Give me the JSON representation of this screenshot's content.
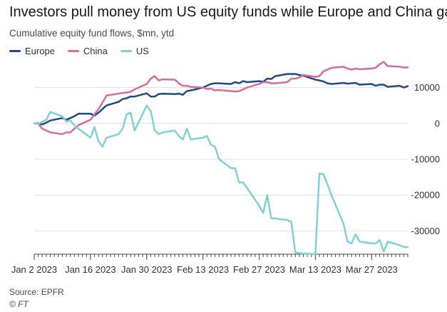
{
  "title": "Investors pull money from US equity funds while Europe and China gain",
  "subtitle": "Cumulative equity fund flows, $mn, ytd",
  "source": "Source: EPFR",
  "credit": "© FT",
  "colors": {
    "europe": "#1e4b87",
    "china": "#d96b9a",
    "us": "#7fd1d6",
    "grid": "#e3dfda",
    "axis": "#4d4845"
  },
  "chart_data": {
    "type": "line",
    "title": "Investors pull money from US equity funds while Europe and China gain",
    "subtitle": "Cumulative equity fund flows, $mn, ytd",
    "xlabel": "",
    "ylabel": "",
    "x_tick_labels": [
      "Jan 2 2023",
      "Jan 16 2023",
      "Jan 30 2023",
      "Feb 13 2023",
      "Feb 27 2023",
      "Mar 13 2023",
      "Mar 27 2023"
    ],
    "x_range": [
      "2023-01-02",
      "2023-04-05"
    ],
    "y_ticks": [
      10000,
      0,
      -10000,
      -20000,
      -30000
    ],
    "y_tick_labels": [
      "10000",
      "0",
      "-10000",
      "-20000",
      "-30000"
    ],
    "ylim": [
      -36500,
      16500
    ],
    "grid": true,
    "legend_position": "top-left",
    "series": [
      {
        "name": "Europe",
        "color": "#1e4b87",
        "dates": [
          "2023-01-02",
          "2023-01-03",
          "2023-01-04",
          "2023-01-05",
          "2023-01-06",
          "2023-01-09",
          "2023-01-10",
          "2023-01-11",
          "2023-01-12",
          "2023-01-13",
          "2023-01-16",
          "2023-01-17",
          "2023-01-18",
          "2023-01-19",
          "2023-01-20",
          "2023-01-23",
          "2023-01-24",
          "2023-01-25",
          "2023-01-26",
          "2023-01-27",
          "2023-01-30",
          "2023-01-31",
          "2023-02-01",
          "2023-02-02",
          "2023-02-03",
          "2023-02-06",
          "2023-02-07",
          "2023-02-08",
          "2023-02-09",
          "2023-02-10",
          "2023-02-13",
          "2023-02-14",
          "2023-02-15",
          "2023-02-16",
          "2023-02-17",
          "2023-02-20",
          "2023-02-21",
          "2023-02-22",
          "2023-02-23",
          "2023-02-24",
          "2023-02-27",
          "2023-02-28",
          "2023-03-01",
          "2023-03-02",
          "2023-03-03",
          "2023-03-06",
          "2023-03-07",
          "2023-03-08",
          "2023-03-09",
          "2023-03-10",
          "2023-03-13",
          "2023-03-14",
          "2023-03-15",
          "2023-03-16",
          "2023-03-17",
          "2023-03-20",
          "2023-03-21",
          "2023-03-22",
          "2023-03-23",
          "2023-03-24",
          "2023-03-27",
          "2023-03-28",
          "2023-03-29",
          "2023-03-30",
          "2023-03-31",
          "2023-04-03",
          "2023-04-04",
          "2023-04-05"
        ],
        "values": [
          0,
          0,
          -300,
          200,
          800,
          1500,
          1000,
          1500,
          2000,
          2700,
          2700,
          2200,
          3000,
          4000,
          5000,
          6000,
          6800,
          7000,
          7500,
          7500,
          8400,
          7500,
          7500,
          8200,
          8300,
          8200,
          8300,
          8000,
          9000,
          9200,
          10000,
          10500,
          11000,
          11200,
          11200,
          11000,
          11500,
          11200,
          11800,
          11500,
          11800,
          11600,
          12500,
          12400,
          13200,
          13800,
          13800,
          13800,
          13500,
          13300,
          12200,
          12000,
          11700,
          11200,
          11000,
          11300,
          11100,
          11200,
          11300,
          10800,
          11000,
          10500,
          10800,
          10800,
          10200,
          10500,
          10000,
          10400
        ]
      },
      {
        "name": "China",
        "color": "#d96b9a",
        "dates": [
          "2023-01-02",
          "2023-01-03",
          "2023-01-04",
          "2023-01-05",
          "2023-01-06",
          "2023-01-09",
          "2023-01-10",
          "2023-01-11",
          "2023-01-12",
          "2023-01-13",
          "2023-01-16",
          "2023-01-17",
          "2023-01-18",
          "2023-01-19",
          "2023-01-20",
          "2023-01-23",
          "2023-01-24",
          "2023-01-25",
          "2023-01-26",
          "2023-01-27",
          "2023-01-30",
          "2023-01-31",
          "2023-02-01",
          "2023-02-02",
          "2023-02-03",
          "2023-02-06",
          "2023-02-07",
          "2023-02-08",
          "2023-02-09",
          "2023-02-10",
          "2023-02-13",
          "2023-02-14",
          "2023-02-15",
          "2023-02-16",
          "2023-02-17",
          "2023-02-20",
          "2023-02-21",
          "2023-02-22",
          "2023-02-23",
          "2023-02-24",
          "2023-02-27",
          "2023-02-28",
          "2023-03-01",
          "2023-03-02",
          "2023-03-03",
          "2023-03-06",
          "2023-03-07",
          "2023-03-08",
          "2023-03-09",
          "2023-03-10",
          "2023-03-13",
          "2023-03-14",
          "2023-03-15",
          "2023-03-16",
          "2023-03-17",
          "2023-03-20",
          "2023-03-21",
          "2023-03-22",
          "2023-03-23",
          "2023-03-24",
          "2023-03-27",
          "2023-03-28",
          "2023-03-29",
          "2023-03-30",
          "2023-03-31",
          "2023-04-03",
          "2023-04-04",
          "2023-04-05"
        ],
        "values": [
          0,
          -100,
          -1500,
          -2000,
          -2500,
          -3000,
          -2500,
          -2500,
          -1500,
          -500,
          1000,
          2500,
          4000,
          5800,
          7800,
          8300,
          8500,
          8600,
          8800,
          9500,
          11000,
          12500,
          13200,
          12000,
          12300,
          12200,
          11200,
          10500,
          10500,
          10200,
          10000,
          9600,
          9700,
          9200,
          9300,
          9000,
          8900,
          9000,
          9500,
          10000,
          11000,
          11500,
          11500,
          11200,
          11200,
          11500,
          12500,
          12500,
          12800,
          13500,
          13000,
          13200,
          14500,
          15000,
          15500,
          15800,
          15300,
          15000,
          15300,
          15100,
          15300,
          15500,
          16500,
          17200,
          16000,
          15800,
          15600,
          15600
        ]
      },
      {
        "name": "US",
        "color": "#7fd1d6",
        "dates": [
          "2023-01-02",
          "2023-01-03",
          "2023-01-04",
          "2023-01-05",
          "2023-01-06",
          "2023-01-09",
          "2023-01-10",
          "2023-01-11",
          "2023-01-12",
          "2023-01-13",
          "2023-01-16",
          "2023-01-17",
          "2023-01-18",
          "2023-01-19",
          "2023-01-20",
          "2023-01-23",
          "2023-01-24",
          "2023-01-25",
          "2023-01-26",
          "2023-01-27",
          "2023-01-30",
          "2023-01-31",
          "2023-02-01",
          "2023-02-02",
          "2023-02-03",
          "2023-02-06",
          "2023-02-07",
          "2023-02-08",
          "2023-02-09",
          "2023-02-10",
          "2023-02-13",
          "2023-02-14",
          "2023-02-15",
          "2023-02-16",
          "2023-02-17",
          "2023-02-20",
          "2023-02-21",
          "2023-02-22",
          "2023-02-23",
          "2023-02-24",
          "2023-02-27",
          "2023-02-28",
          "2023-03-01",
          "2023-03-02",
          "2023-03-03",
          "2023-03-06",
          "2023-03-07",
          "2023-03-08",
          "2023-03-09",
          "2023-03-10",
          "2023-03-13",
          "2023-03-14",
          "2023-03-15",
          "2023-03-16",
          "2023-03-17",
          "2023-03-20",
          "2023-03-21",
          "2023-03-22",
          "2023-03-23",
          "2023-03-24",
          "2023-03-27",
          "2023-03-28",
          "2023-03-29",
          "2023-03-30",
          "2023-03-31",
          "2023-04-03",
          "2023-04-04",
          "2023-04-05"
        ],
        "values": [
          0,
          -200,
          500,
          1000,
          3200,
          2000,
          500,
          800,
          -500,
          -1500,
          -4000,
          -1000,
          -5000,
          -6500,
          -4000,
          -3000,
          -1500,
          2500,
          3000,
          -2000,
          5000,
          3500,
          -2000,
          -3000,
          -2500,
          -2000,
          -3500,
          -4500,
          -1500,
          -4500,
          -4000,
          -3500,
          -6000,
          -6500,
          -10000,
          -12500,
          -12500,
          -16500,
          -16500,
          -18000,
          -23000,
          -25000,
          -20000,
          -26500,
          -26500,
          -27000,
          -27500,
          -36000,
          -36200,
          -36300,
          -36500,
          -14000,
          -14200,
          -17000,
          -20000,
          -28000,
          -33000,
          -33500,
          -31000,
          -33000,
          -33500,
          -33500,
          -32500,
          -35800,
          -33000,
          -34000,
          -34500,
          -34500
        ]
      }
    ]
  }
}
